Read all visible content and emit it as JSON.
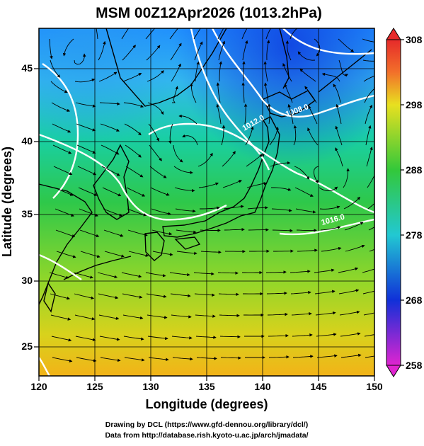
{
  "title": "MSM 00Z12Apr2026 (1013.2hPa)",
  "x_axis": {
    "label": "Longitude (degrees)",
    "range": [
      120,
      150
    ],
    "ticks": [
      "120",
      "125",
      "130",
      "135",
      "140",
      "145",
      "150"
    ]
  },
  "y_axis": {
    "label": "Latitude  (degrees)",
    "range": [
      22.5,
      47.5
    ],
    "ticks": [
      "25",
      "30",
      "35",
      "40",
      "45"
    ]
  },
  "colorbar": {
    "range": [
      258,
      308
    ],
    "ticks": [
      "308",
      "298",
      "288",
      "278",
      "268",
      "258"
    ]
  },
  "contour_labels": [
    "1008.0",
    "1012.0",
    "1016.0"
  ],
  "credits": {
    "line1": "Drawing by DCL (https://www.gfd-dennou.org/library/dcl/)",
    "line2": "Data from http://database.rish.kyoto-u.ac.jp/arch/jmadata/"
  }
}
